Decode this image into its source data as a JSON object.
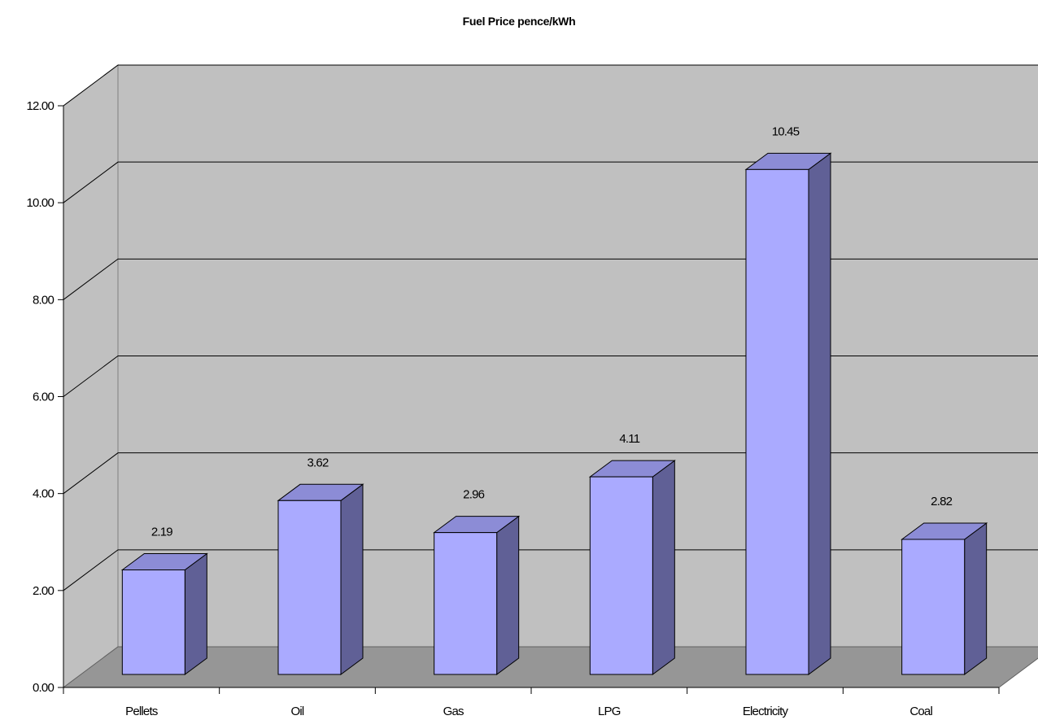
{
  "chart_data": {
    "type": "bar",
    "title": "Fuel Price pence/kWh",
    "categories": [
      "Pellets",
      "Oil",
      "Gas",
      "LPG",
      "Electricity",
      "Coal"
    ],
    "values": [
      2.19,
      3.62,
      2.96,
      4.11,
      10.45,
      2.82
    ],
    "data_labels": [
      "2.19",
      "3.62",
      "2.96",
      "4.11",
      "10.45",
      "2.82"
    ],
    "yticks": [
      "0.00",
      "2.00",
      "4.00",
      "6.00",
      "8.00",
      "10.00",
      "12.00"
    ],
    "ylim": [
      0,
      12
    ],
    "grid": true,
    "legend": "none",
    "colors": {
      "bar_front": "#aaaaff",
      "bar_top": "#8c8cd6",
      "bar_side": "#606096",
      "back_wall": "#c0c0c0",
      "side_wall": "#c0c0c0",
      "floor": "#969696"
    }
  }
}
